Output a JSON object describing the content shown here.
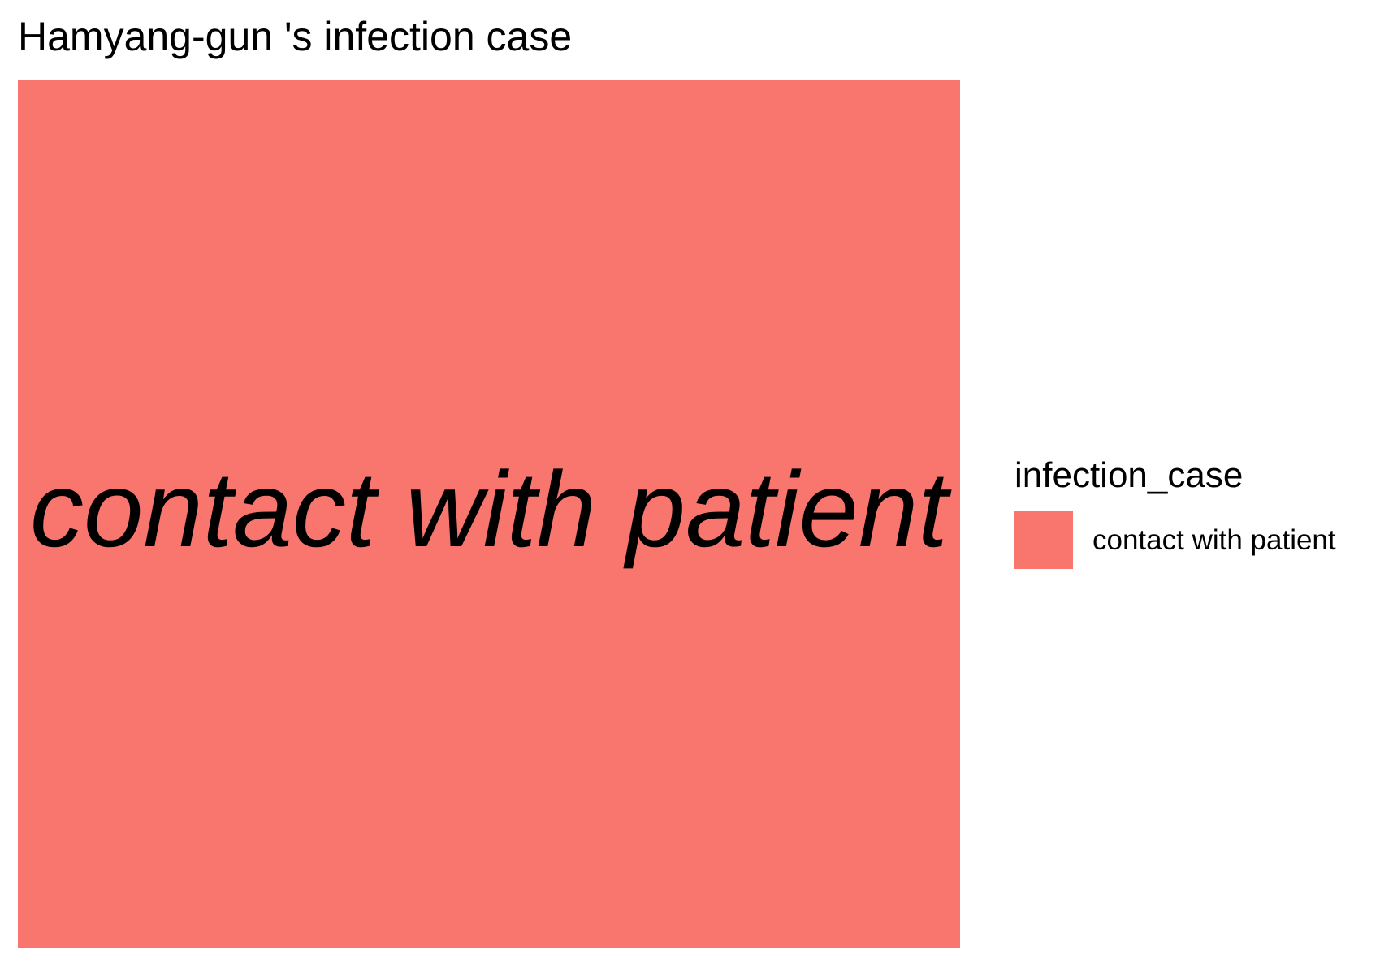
{
  "chart_data": {
    "type": "treemap",
    "title": "Hamyang-gun 's infection case",
    "tiles": [
      {
        "label": "contact with patient",
        "value": 1,
        "color": "#F8766D"
      }
    ],
    "legend": {
      "title": "infection_case",
      "position": "right",
      "items": [
        {
          "label": "contact with patient",
          "color": "#F8766D"
        }
      ]
    },
    "grid": false
  }
}
